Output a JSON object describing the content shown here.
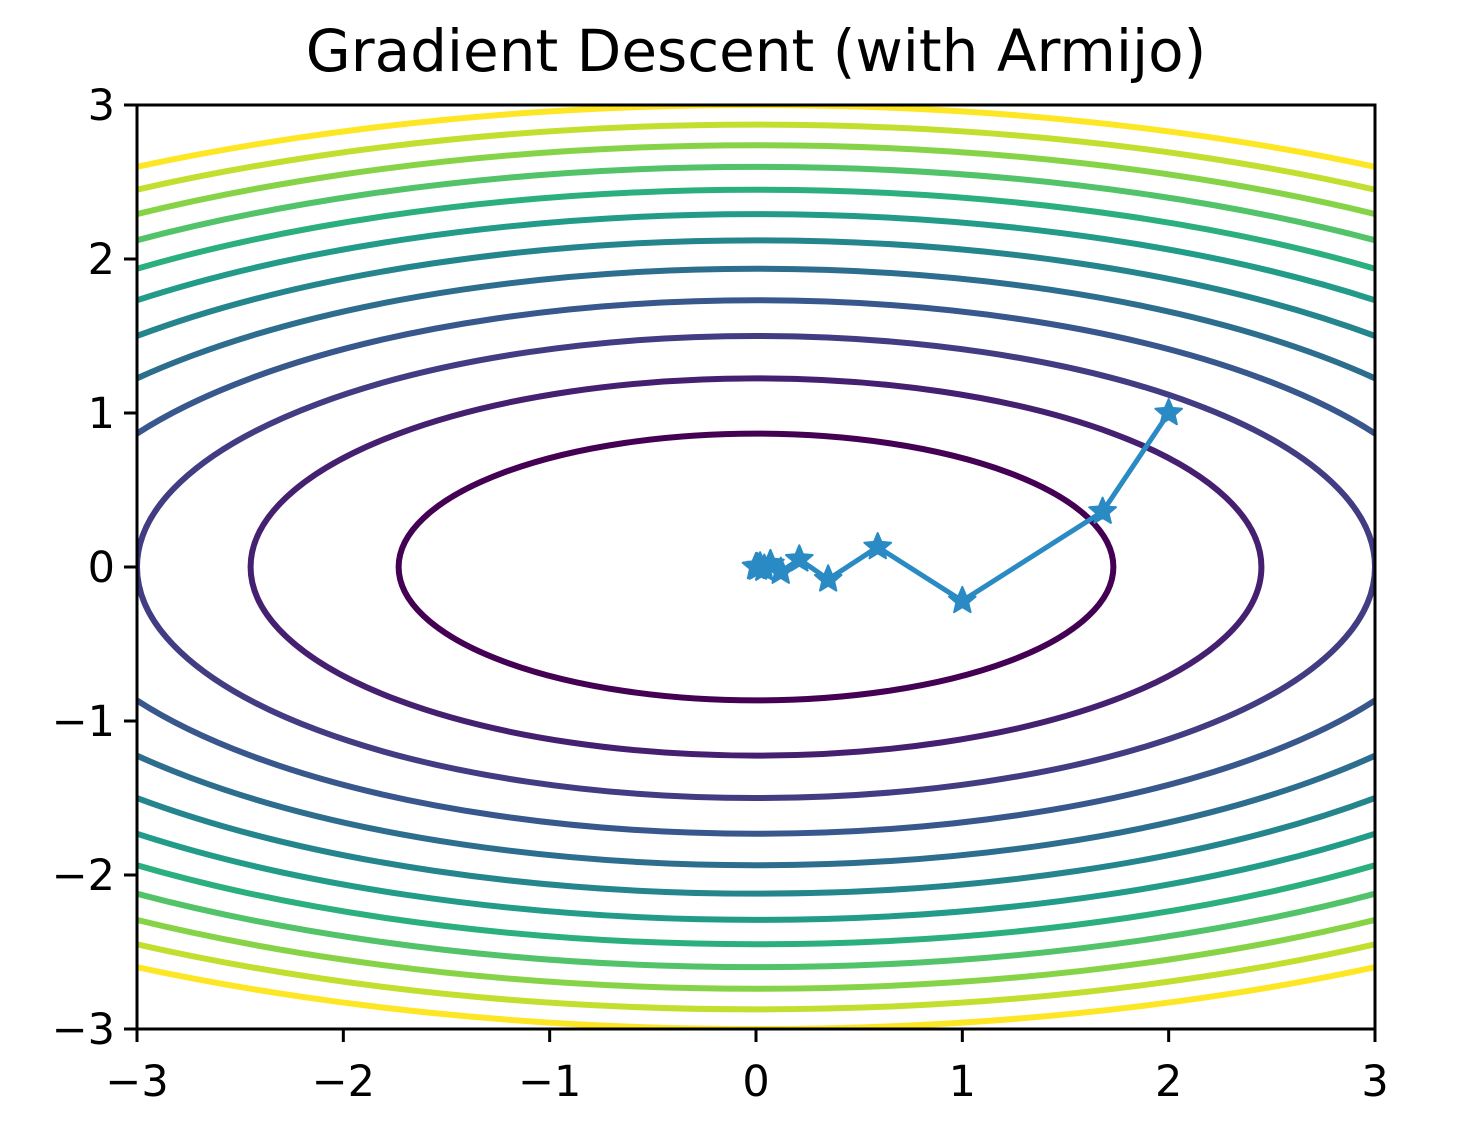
{
  "chart_data": {
    "type": "contour",
    "title": "Gradient Descent (with Armijo)",
    "xlabel": "",
    "ylabel": "",
    "xlim": [
      -3,
      3
    ],
    "ylim": [
      -3,
      3
    ],
    "x_ticks": [
      "−3",
      "−2",
      "−1",
      "0",
      "1",
      "2",
      "3"
    ],
    "y_ticks": [
      "−3",
      "−2",
      "−1",
      "0",
      "1",
      "2",
      "3"
    ],
    "x_tick_values": [
      -3,
      -2,
      -1,
      0,
      1,
      2,
      3
    ],
    "y_tick_values": [
      -3,
      -2,
      -1,
      0,
      1,
      2,
      3
    ],
    "grid": false,
    "contour": {
      "function": "0.5*x^2 + 2*y^2",
      "levels": [
        1.5,
        3,
        4.5,
        6,
        7.5,
        9,
        10.5,
        12,
        13.5,
        15,
        16.5,
        18
      ],
      "colormap": "viridis"
    },
    "path": {
      "color": "#2a8ac4",
      "marker": "star",
      "points": [
        [
          2.0,
          1.0
        ],
        [
          1.68,
          0.36
        ],
        [
          1.0,
          -0.22
        ],
        [
          0.59,
          0.13
        ],
        [
          0.35,
          -0.08
        ],
        [
          0.21,
          0.05
        ],
        [
          0.12,
          -0.03
        ],
        [
          0.07,
          0.02
        ],
        [
          0.04,
          -0.01
        ],
        [
          0.02,
          0.005
        ],
        [
          0.01,
          -0.003
        ],
        [
          0.005,
          0.001
        ],
        [
          0.0,
          0.0
        ]
      ]
    }
  }
}
